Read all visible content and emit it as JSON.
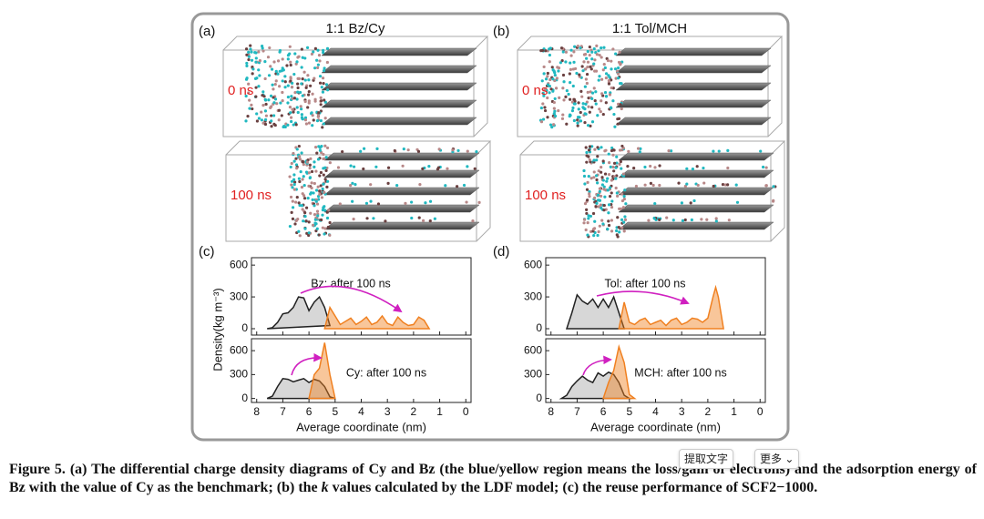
{
  "figure": {
    "panels": [
      {
        "label": "(a)",
        "title": "1:1 Bz/Cy",
        "snapshots": [
          "0 ns",
          "100 ns"
        ]
      },
      {
        "label": "(b)",
        "title": "1:1 Tol/MCH",
        "snapshots": [
          "0 ns",
          "100 ns"
        ]
      }
    ],
    "charts": [
      {
        "label": "(c)",
        "xlabel": "Average coordinate (nm)",
        "ylabel": "Density(kg m⁻³)",
        "xlim": [
          8.2,
          -0.2
        ],
        "xticks": [
          8,
          7,
          6,
          5,
          4,
          3,
          2,
          1,
          0
        ],
        "subplots": [
          {
            "annotation": "Bz: after 100 ns",
            "ylim": [
              -60,
              670
            ],
            "yticks": [
              0,
              300,
              600
            ],
            "series": [
              {
                "color": "#222222",
                "x": [
                  7.6,
                  7.4,
                  7.2,
                  7.0,
                  6.8,
                  6.6,
                  6.4,
                  6.2,
                  6.0,
                  5.8,
                  5.6,
                  5.4,
                  5.2
                ],
                "values": [
                  0,
                  10,
                  60,
                  140,
                  150,
                  200,
                  300,
                  290,
                  170,
                  250,
                  300,
                  200,
                  30
                ]
              },
              {
                "color": "#f08020",
                "x": [
                  5.4,
                  5.2,
                  5.0,
                  4.8,
                  4.6,
                  4.4,
                  4.2,
                  4.0,
                  3.8,
                  3.6,
                  3.4,
                  3.2,
                  3.0,
                  2.8,
                  2.6,
                  2.4,
                  2.2,
                  2.0,
                  1.8,
                  1.6,
                  1.4
                ],
                "values": [
                  0,
                  200,
                  120,
                  40,
                  70,
                  100,
                  40,
                  70,
                  110,
                  40,
                  60,
                  120,
                  50,
                  30,
                  110,
                  60,
                  30,
                  40,
                  110,
                  80,
                  0
                ]
              }
            ]
          },
          {
            "annotation": "Cy: after 100 ns",
            "ylim": [
              -50,
              750
            ],
            "yticks": [
              0,
              300,
              600
            ],
            "series": [
              {
                "color": "#222222",
                "x": [
                  7.6,
                  7.4,
                  7.2,
                  7.0,
                  6.8,
                  6.6,
                  6.4,
                  6.2,
                  6.0,
                  5.8,
                  5.6,
                  5.4,
                  5.2,
                  5.0
                ],
                "values": [
                  0,
                  30,
                  150,
                  250,
                  240,
                  210,
                  230,
                  250,
                  200,
                  240,
                  220,
                  150,
                  20,
                  0
                ]
              },
              {
                "color": "#f08020",
                "x": [
                  6.0,
                  5.8,
                  5.6,
                  5.4,
                  5.2,
                  5.0
                ],
                "values": [
                  0,
                  300,
                  380,
                  700,
                  300,
                  0
                ]
              }
            ]
          }
        ]
      },
      {
        "label": "(d)",
        "xlabel": "Average coordinate (nm)",
        "xlim": [
          8.2,
          -0.2
        ],
        "xticks": [
          8,
          7,
          6,
          5,
          4,
          3,
          2,
          1,
          0
        ],
        "subplots": [
          {
            "annotation": "Tol: after 100 ns",
            "ylim": [
              -60,
              670
            ],
            "yticks": [
              0,
              300,
              600
            ],
            "series": [
              {
                "color": "#222222",
                "x": [
                  7.4,
                  7.2,
                  7.0,
                  6.8,
                  6.6,
                  6.4,
                  6.2,
                  6.0,
                  5.8,
                  5.6,
                  5.4,
                  5.2
                ],
                "values": [
                  0,
                  150,
                  320,
                  260,
                  230,
                  280,
                  200,
                  280,
                  200,
                  300,
                  150,
                  0
                ]
              },
              {
                "color": "#f08020",
                "x": [
                  5.4,
                  5.2,
                  5.0,
                  4.8,
                  4.6,
                  4.4,
                  4.2,
                  4.0,
                  3.8,
                  3.6,
                  3.4,
                  3.2,
                  3.0,
                  2.8,
                  2.6,
                  2.4,
                  2.2,
                  2.0,
                  1.8,
                  1.7,
                  1.6,
                  1.4
                ],
                "values": [
                  0,
                  250,
                  60,
                  40,
                  80,
                  100,
                  40,
                  60,
                  80,
                  30,
                  80,
                  100,
                  40,
                  60,
                  100,
                  90,
                  60,
                  100,
                  300,
                  390,
                  300,
                  0
                ]
              }
            ]
          },
          {
            "annotation": "MCH: after 100 ns",
            "ylim": [
              -50,
              750
            ],
            "yticks": [
              0,
              300,
              600
            ],
            "series": [
              {
                "color": "#222222",
                "x": [
                  7.6,
                  7.4,
                  7.2,
                  7.0,
                  6.8,
                  6.6,
                  6.4,
                  6.2,
                  6.0,
                  5.8,
                  5.6,
                  5.4,
                  5.2,
                  5.0
                ],
                "values": [
                  0,
                  40,
                  150,
                  220,
                  280,
                  230,
                  200,
                  320,
                  280,
                  330,
                  300,
                  200,
                  40,
                  0
                ]
              },
              {
                "color": "#f08020",
                "x": [
                  6.0,
                  5.8,
                  5.6,
                  5.4,
                  5.2,
                  5.0,
                  4.8
                ],
                "values": [
                  0,
                  200,
                  350,
                  650,
                  450,
                  50,
                  0
                ]
              }
            ]
          }
        ]
      }
    ]
  },
  "caption": {
    "label": "Figure 5.",
    "text_1": "(a) The differential charge density diagrams of Cy and Bz (the blue/yellow region means the loss/gain of electrons) and the adsorption energy of Bz with the value of Cy as the benchmark; (b) the",
    "italic": "k",
    "text_2": "values calculated by the LDF model; (c) the reuse performance of SCF2−1000."
  },
  "toolbar": {
    "extract": "提取文字",
    "more": "更多 ⌄"
  }
}
